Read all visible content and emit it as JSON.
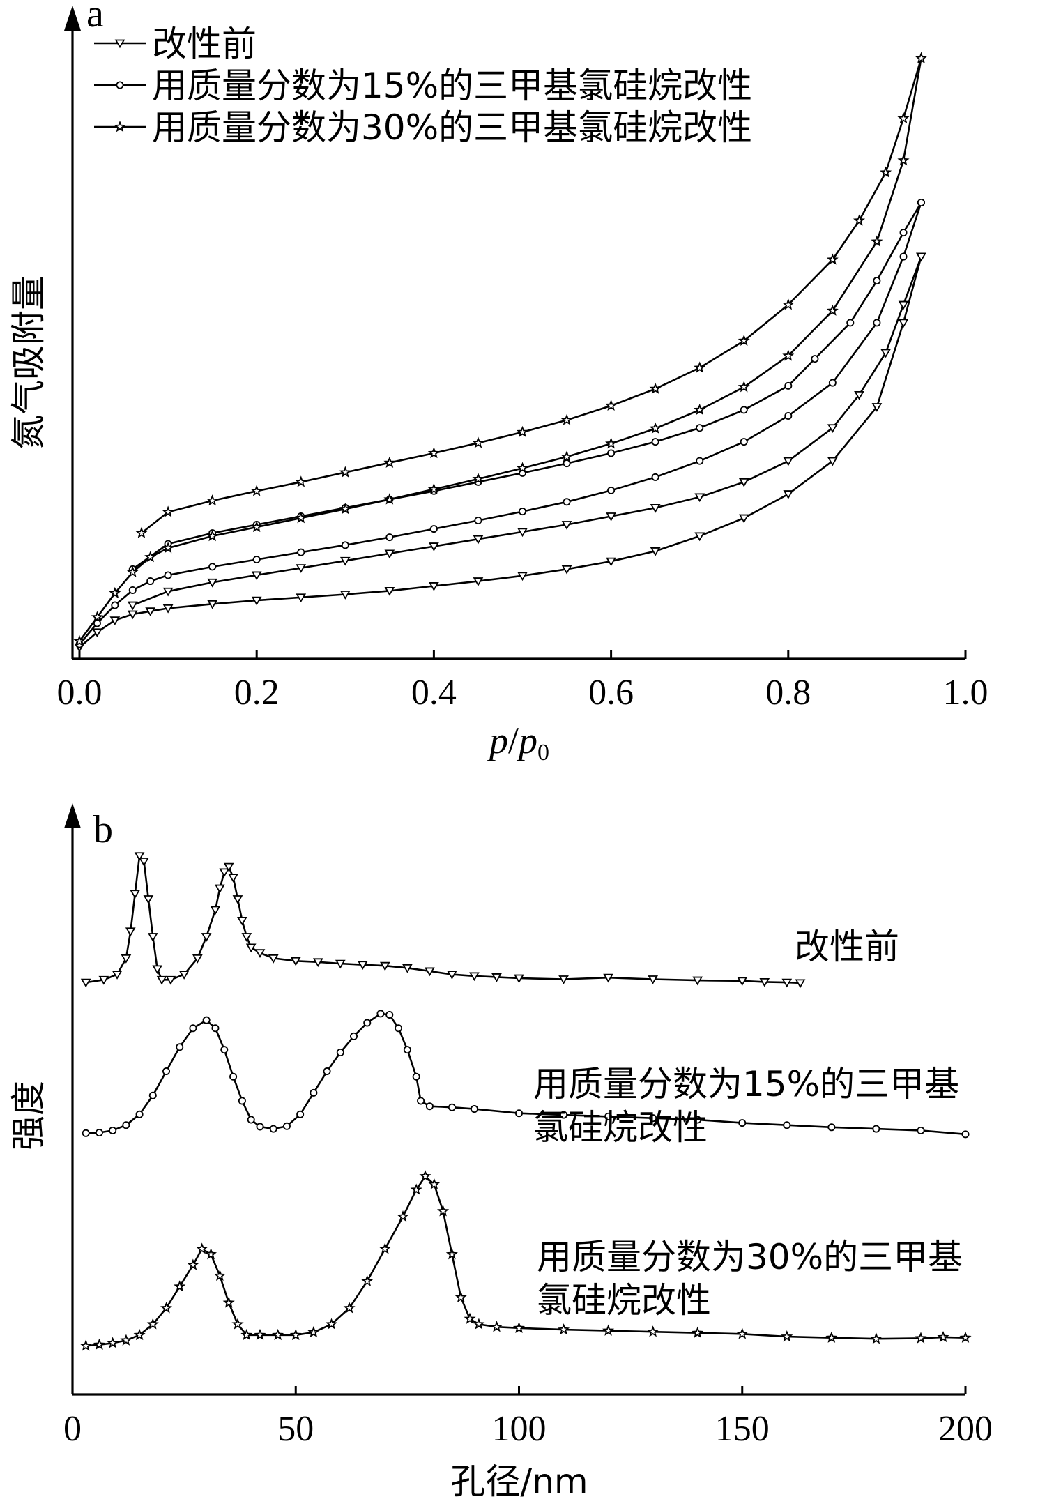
{
  "chart_data": [
    {
      "type": "line",
      "panel_label": "a",
      "xlabel_italic": "p",
      "xlabel_mid": "/",
      "xlabel_italic2": "p",
      "xlabel_sub": "0",
      "ylabel": "氮气吸附量",
      "xlim": [
        0,
        1.0
      ],
      "xticks": [
        "0.0",
        "0.2",
        "0.4",
        "0.6",
        "0.8",
        "1.0"
      ],
      "xtick_values": [
        0,
        0.2,
        0.4,
        0.6,
        0.8,
        1.0
      ],
      "ylim": [
        0,
        100
      ],
      "legend_position": "top-left",
      "series": [
        {
          "name": "改性前",
          "marker": "triangle-down",
          "adsorption": {
            "x": [
              0.0,
              0.02,
              0.04,
              0.06,
              0.08,
              0.1,
              0.15,
              0.2,
              0.25,
              0.3,
              0.35,
              0.4,
              0.45,
              0.5,
              0.55,
              0.6,
              0.65,
              0.7,
              0.75,
              0.8,
              0.85,
              0.9,
              0.93,
              0.95
            ],
            "y": [
              1,
              3.5,
              5.5,
              6.5,
              7,
              7.5,
              8.2,
              8.8,
              9.3,
              9.8,
              10.4,
              11.2,
              12,
              12.9,
              14,
              15.3,
              17,
              19.5,
              22.5,
              26.5,
              32,
              41,
              55,
              66
            ]
          },
          "desorption": {
            "x": [
              0.95,
              0.93,
              0.91,
              0.88,
              0.85,
              0.8,
              0.75,
              0.7,
              0.65,
              0.6,
              0.55,
              0.5,
              0.45,
              0.4,
              0.35,
              0.3,
              0.25,
              0.2,
              0.15,
              0.1,
              0.06
            ],
            "y": [
              66,
              58,
              50,
              43,
              37.5,
              32,
              28.5,
              26,
              24.2,
              22.8,
              21.4,
              20.2,
              19,
              17.8,
              16.6,
              15.4,
              14.2,
              13,
              11.8,
              10.3,
              8
            ]
          }
        },
        {
          "name": "用质量分数为15%的三甲基氯硅烷改性",
          "marker": "circle",
          "adsorption": {
            "x": [
              0.0,
              0.02,
              0.04,
              0.06,
              0.08,
              0.1,
              0.15,
              0.2,
              0.25,
              0.3,
              0.35,
              0.4,
              0.45,
              0.5,
              0.55,
              0.6,
              0.65,
              0.7,
              0.75,
              0.8,
              0.85,
              0.9,
              0.93,
              0.95
            ],
            "y": [
              1.5,
              5,
              8,
              10.5,
              12,
              13,
              14.4,
              15.6,
              16.8,
              18,
              19.3,
              20.7,
              22.1,
              23.6,
              25.2,
              27.1,
              29.3,
              32,
              35.2,
              39.5,
              45,
              55,
              66,
              75
            ]
          },
          "desorption": {
            "x": [
              0.95,
              0.93,
              0.9,
              0.87,
              0.83,
              0.8,
              0.75,
              0.7,
              0.65,
              0.6,
              0.55,
              0.5,
              0.45,
              0.4,
              0.35,
              0.3,
              0.25,
              0.2,
              0.15,
              0.1,
              0.06
            ],
            "y": [
              75,
              70,
              62,
              55,
              49,
              44.5,
              40.5,
              37.5,
              35.2,
              33.3,
              31.6,
              30,
              28.5,
              27,
              25.6,
              24.2,
              22.8,
              21.4,
              20,
              18.2,
              14
            ]
          }
        },
        {
          "name": "用质量分数为30%的三甲基氯硅烷改性",
          "marker": "star",
          "adsorption": {
            "x": [
              0.0,
              0.02,
              0.04,
              0.06,
              0.08,
              0.1,
              0.15,
              0.2,
              0.25,
              0.3,
              0.35,
              0.4,
              0.45,
              0.5,
              0.55,
              0.6,
              0.65,
              0.7,
              0.75,
              0.8,
              0.85,
              0.9,
              0.93,
              0.95
            ],
            "y": [
              2,
              6,
              10,
              13.5,
              16,
              17.5,
              19.5,
              21,
              22.5,
              24,
              25.6,
              27.3,
              29,
              30.8,
              32.7,
              34.9,
              37.4,
              40.5,
              44.3,
              49.5,
              57,
              68.5,
              82,
              99
            ]
          },
          "desorption": {
            "x": [
              0.95,
              0.93,
              0.91,
              0.88,
              0.85,
              0.8,
              0.75,
              0.7,
              0.65,
              0.6,
              0.55,
              0.5,
              0.45,
              0.4,
              0.35,
              0.3,
              0.25,
              0.2,
              0.15,
              0.1,
              0.07
            ],
            "y": [
              99,
              89,
              80,
              72,
              65.5,
              58,
              52,
              47.5,
              44,
              41.2,
              38.8,
              36.8,
              35,
              33.3,
              31.7,
              30.1,
              28.5,
              27,
              25.4,
              23.5,
              20
            ]
          }
        }
      ]
    },
    {
      "type": "line",
      "panel_label": "b",
      "xlabel": "孔径/nm",
      "ylabel": "强度",
      "xlim": [
        0,
        200
      ],
      "xticks": [
        "0",
        "50",
        "100",
        "150",
        "200"
      ],
      "xtick_values": [
        0,
        50,
        100,
        150,
        200
      ],
      "ylim": [
        0,
        100
      ],
      "series": [
        {
          "name": "改性前",
          "label_lines": [
            "改性前"
          ],
          "marker": "triangle-down",
          "x": [
            3,
            7,
            10,
            12,
            13,
            14,
            15,
            16,
            17,
            18,
            19,
            20,
            22,
            25,
            28,
            30,
            32,
            33,
            34,
            35,
            36,
            37,
            38,
            39,
            40,
            42,
            45,
            50,
            55,
            60,
            65,
            70,
            75,
            80,
            85,
            90,
            95,
            100,
            110,
            120,
            130,
            140,
            150,
            155,
            160,
            163
          ],
          "y": [
            75.5,
            76,
            77,
            80,
            85,
            92,
            99,
            98,
            91,
            84,
            78,
            76,
            76,
            77,
            80,
            84,
            89,
            93,
            96,
            97,
            95,
            91,
            87,
            84,
            82,
            81,
            80,
            79.5,
            79.3,
            79,
            78.8,
            78.6,
            78.2,
            77.6,
            77,
            76.7,
            76.5,
            76.3,
            76.1,
            76.4,
            76.1,
            75.9,
            75.8,
            75.6,
            75.5,
            75.4
          ]
        },
        {
          "name": "用质量分数为15%的三甲基氯硅烷改性",
          "label_lines": [
            "用质量分数为15%的三甲基",
            "氯硅烷改性"
          ],
          "marker": "circle",
          "x": [
            3,
            6,
            9,
            12,
            15,
            18,
            21,
            24,
            27,
            30,
            32,
            34,
            36,
            38,
            40,
            42,
            45,
            48,
            51,
            54,
            57,
            60,
            63,
            66,
            69,
            71,
            73,
            75,
            77,
            78,
            80,
            85,
            90,
            100,
            110,
            120,
            130,
            140,
            150,
            160,
            170,
            180,
            190,
            200
          ],
          "y": [
            47.5,
            47.6,
            48,
            49,
            51,
            54.5,
            59,
            63.5,
            67,
            68.5,
            67,
            63,
            58,
            53.5,
            50,
            48.7,
            48.3,
            48.8,
            51,
            55,
            59,
            62.5,
            65.5,
            68,
            69.7,
            69.5,
            67,
            63,
            58,
            53.5,
            52.5,
            52.3,
            52,
            51.2,
            50.9,
            50.6,
            50.3,
            50,
            49.4,
            49,
            48.6,
            48.3,
            48,
            47.3
          ]
        },
        {
          "name": "用质量分数为30%的三甲基氯硅烷改性",
          "label_lines": [
            "用质量分数为30%的三甲基",
            "氯硅烷改性"
          ],
          "marker": "star",
          "x": [
            3,
            6,
            9,
            12,
            15,
            18,
            21,
            24,
            27,
            29,
            31,
            33,
            35,
            37,
            39,
            42,
            46,
            50,
            54,
            58,
            62,
            66,
            70,
            74,
            77,
            79,
            81,
            83,
            85,
            87,
            89,
            91,
            95,
            100,
            110,
            120,
            130,
            140,
            150,
            160,
            170,
            180,
            190,
            195,
            200
          ],
          "y": [
            8,
            8.2,
            8.5,
            9,
            10,
            12,
            15,
            19,
            23,
            26,
            25,
            21,
            16,
            12,
            10,
            10,
            10,
            10,
            10.5,
            12,
            15,
            20,
            26,
            32,
            37,
            39.5,
            38,
            33,
            25,
            17,
            13,
            12,
            11.5,
            11.3,
            11,
            10.8,
            10.6,
            10.4,
            10.2,
            9.7,
            9.5,
            9.3,
            9.4,
            9.6,
            9.5
          ]
        }
      ]
    }
  ]
}
